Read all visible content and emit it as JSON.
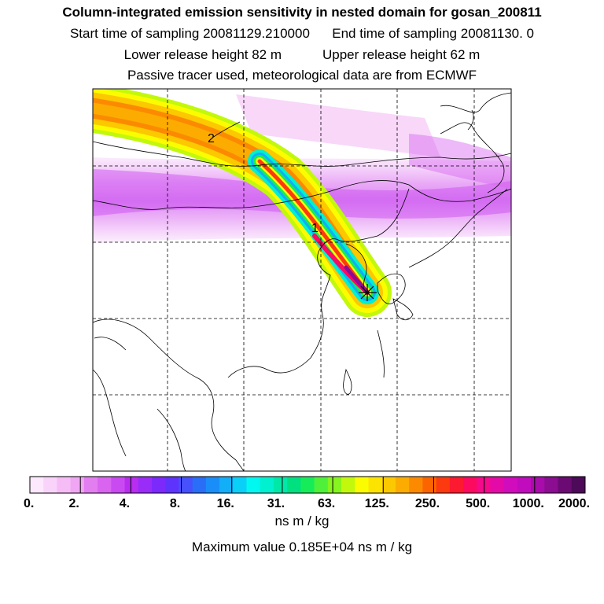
{
  "header": {
    "title": "Column-integrated emission sensitivity in nested domain for gosan_200811",
    "start_label": "Start time of sampling 20081129.210000",
    "end_label": "End time of sampling 20081130.     0",
    "lower_label": "Lower release height   82 m",
    "upper_label": "Upper release height   62 m",
    "tracer_label": "Passive tracer used, meteorological data are from ECMWF"
  },
  "map": {
    "markers": [
      {
        "label": "1"
      },
      {
        "label": "2"
      }
    ],
    "receptor_symbol": "star"
  },
  "colorbar": {
    "tick_labels": [
      "0.",
      "2.",
      "4.",
      "8.",
      "16.",
      "31.",
      "63.",
      "125.",
      "250.",
      "500.",
      "1000.",
      "2000."
    ],
    "colors": [
      "#fde9fd",
      "#fad3fa",
      "#f6bcf6",
      "#f0a6f2",
      "#e27ef0",
      "#d864f0",
      "#c94af0",
      "#b82ef0",
      "#9a2cf8",
      "#7c2afc",
      "#5e34fc",
      "#4650fc",
      "#2a6ef8",
      "#1a8ef8",
      "#12aef8",
      "#0ad0f8",
      "#00f8f0",
      "#00f0d0",
      "#00e8a8",
      "#00e080",
      "#16ec5a",
      "#4ef03a",
      "#86f41e",
      "#c2f80c",
      "#fcfc00",
      "#fce400",
      "#fcc800",
      "#fcac00",
      "#fc8a00",
      "#fc6400",
      "#fc3a10",
      "#fc1a30",
      "#fc0a60",
      "#f40a8a",
      "#e40aa8",
      "#d00cbc",
      "#c00cbc",
      "#a80caa",
      "#8c0c92",
      "#6c0a74",
      "#4c0a58"
    ],
    "unit": "ns m / kg"
  },
  "footer": {
    "max_value": "Maximum value  0.185E+04 ns m / kg"
  }
}
